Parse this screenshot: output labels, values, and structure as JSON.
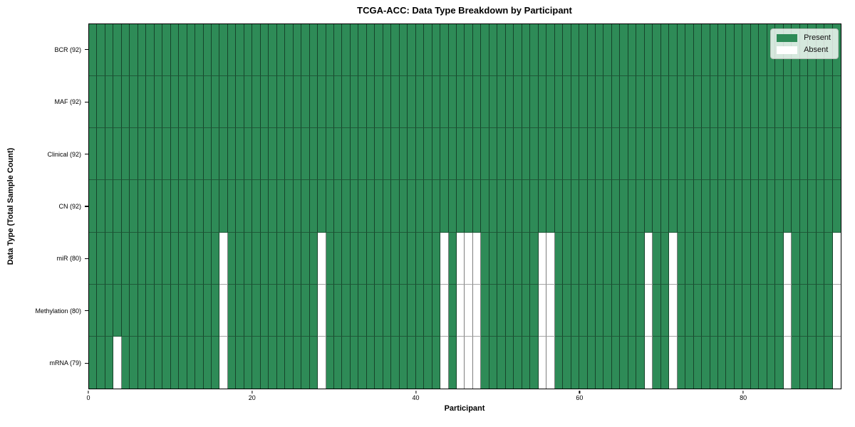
{
  "title": "TCGA-ACC: Data Type Breakdown by Participant",
  "xlabel": "Participant",
  "ylabel": "Data Type (Total Sample Count)",
  "legend": {
    "present_label": "Present",
    "absent_label": "Absent"
  },
  "colors": {
    "present": "#2e8b57",
    "absent": "#ffffff",
    "legend_border": "#b9c0b9",
    "spine": "#000000"
  },
  "chart_data": {
    "type": "heatmap",
    "title": "TCGA-ACC: Data Type Breakdown by Participant",
    "xlabel": "Participant",
    "ylabel": "Data Type (Total Sample Count)",
    "legend_entries": [
      "Present",
      "Absent"
    ],
    "legend_position": "upper right",
    "grid": "cell borders only",
    "n_participants": 92,
    "x_axis": {
      "range": [
        0,
        92
      ],
      "ticks": [
        0,
        20,
        40,
        60,
        80
      ]
    },
    "value_encoding": {
      "present": 1,
      "absent": 0
    },
    "rows": [
      {
        "label": "BCR (92)",
        "present_count": 92,
        "absent_participants": []
      },
      {
        "label": "MAF (92)",
        "present_count": 92,
        "absent_participants": []
      },
      {
        "label": "Clinical (92)",
        "present_count": 92,
        "absent_participants": []
      },
      {
        "label": "CN (92)",
        "present_count": 92,
        "absent_participants": []
      },
      {
        "label": "miR (80)",
        "present_count": 80,
        "absent_participants": [
          16,
          28,
          43,
          45,
          46,
          47,
          55,
          56,
          68,
          71,
          85,
          91
        ]
      },
      {
        "label": "Methylation (80)",
        "present_count": 80,
        "absent_participants": [
          16,
          28,
          43,
          45,
          46,
          47,
          55,
          56,
          68,
          71,
          85,
          91
        ]
      },
      {
        "label": "mRNA (79)",
        "present_count": 79,
        "absent_participants": [
          3,
          16,
          28,
          43,
          45,
          46,
          47,
          55,
          56,
          68,
          71,
          85,
          91
        ]
      }
    ]
  }
}
